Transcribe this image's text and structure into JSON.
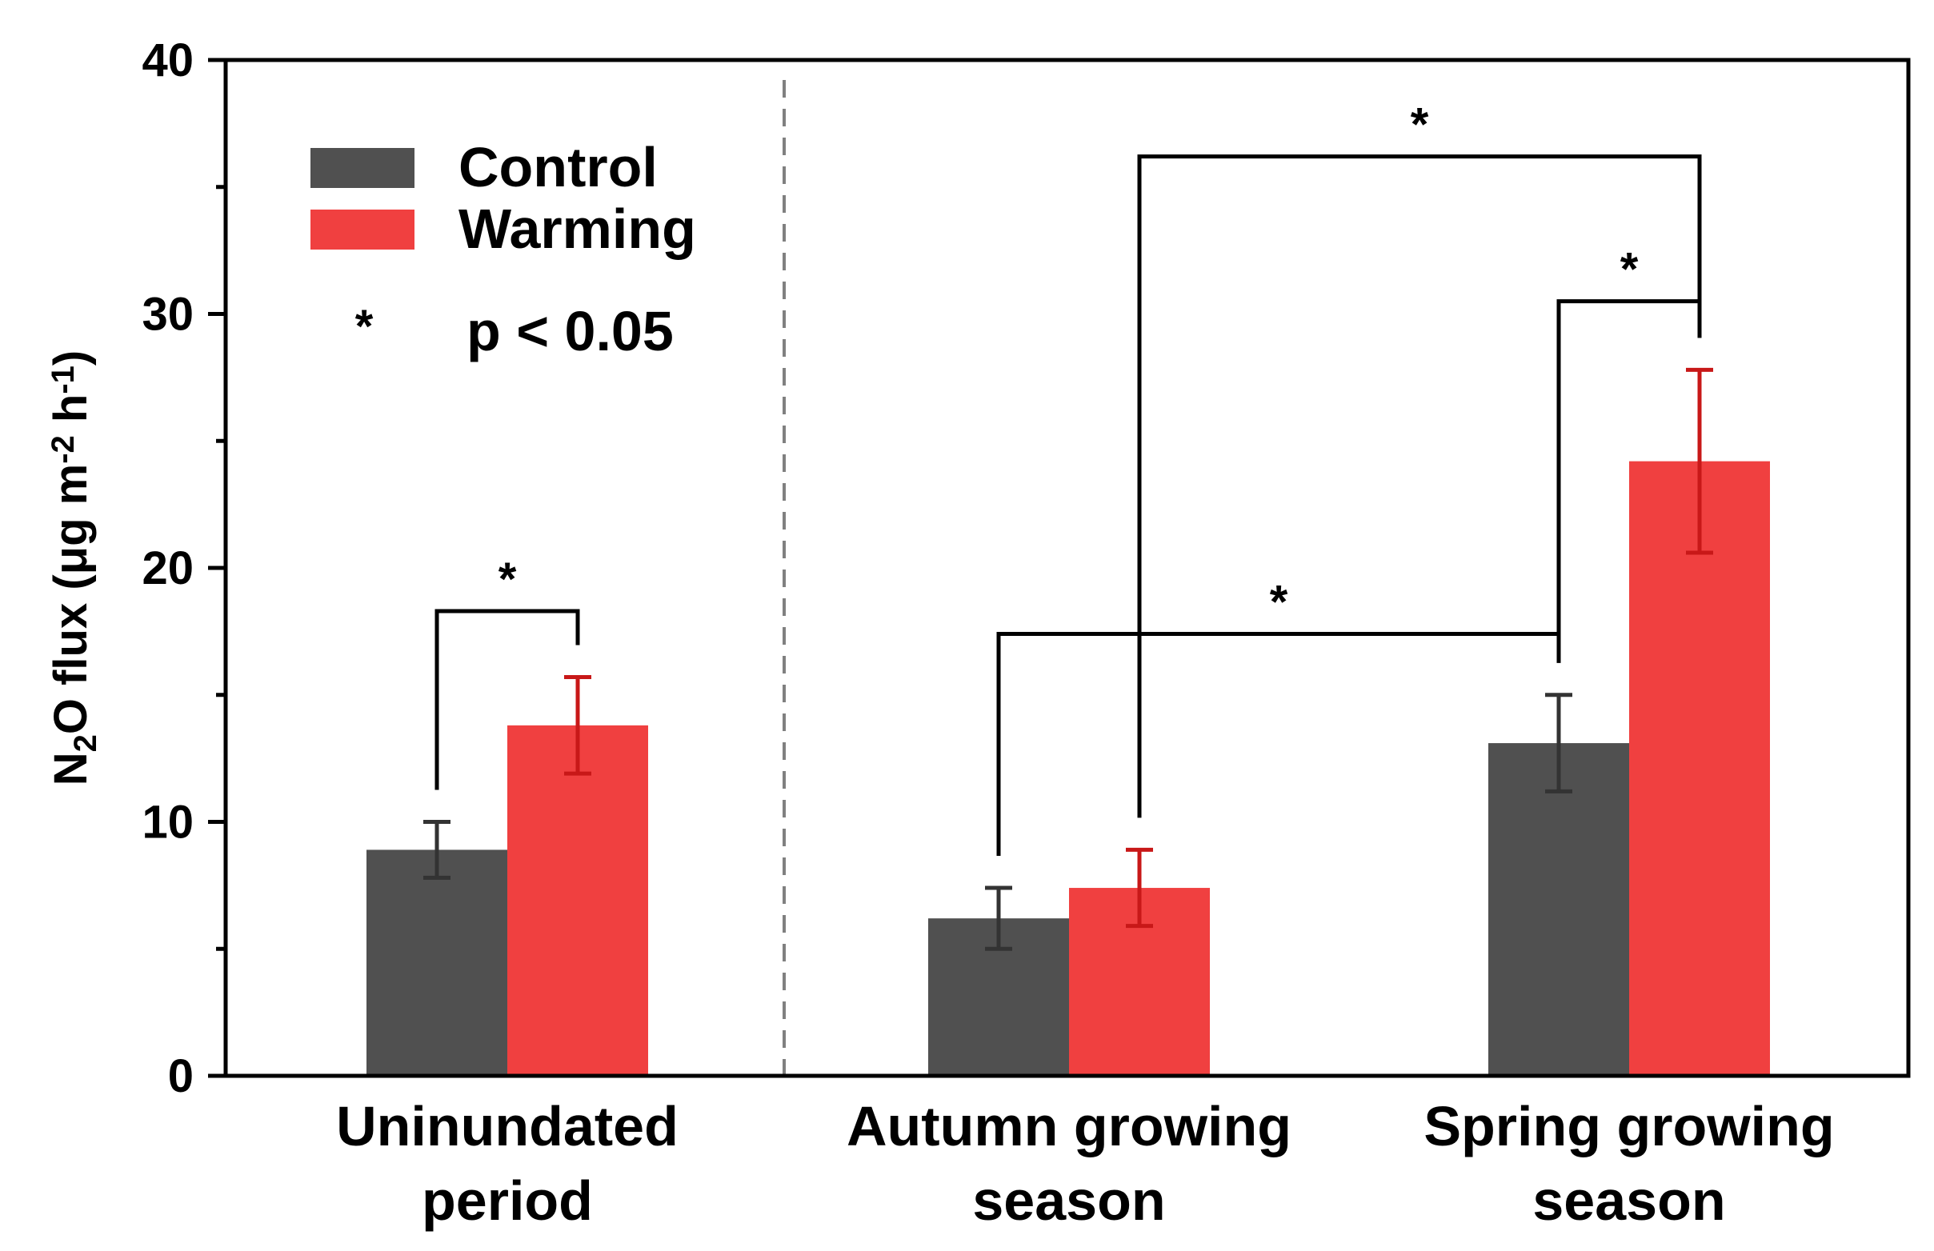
{
  "chart_data": {
    "type": "bar",
    "title": "",
    "xlabel": "",
    "ylabel_parts": [
      "N",
      "2",
      "O flux (μg m",
      "-2",
      " h",
      "-1",
      ")"
    ],
    "ylim": [
      0,
      40
    ],
    "yticks": [
      "0",
      "10",
      "20",
      "30",
      "40"
    ],
    "categories": [
      {
        "line1": "Uninundated",
        "line2": "period"
      },
      {
        "line1": "Autumn growing",
        "line2": "season"
      },
      {
        "line1": "Spring growing",
        "line2": "season"
      }
    ],
    "series": [
      {
        "name": "Control",
        "color": "#505050",
        "error_color": "#333333",
        "values": [
          8.9,
          6.2,
          13.1
        ],
        "errors": [
          1.1,
          1.2,
          1.9
        ]
      },
      {
        "name": "Warming",
        "color": "#F04040",
        "error_color": "#C81818",
        "values": [
          13.8,
          7.4,
          24.2
        ],
        "errors": [
          1.9,
          1.5,
          3.6
        ]
      }
    ],
    "significance_note": {
      "marker": "*",
      "label": "p < 0.05"
    },
    "significance": [
      {
        "from_group": 0,
        "from_series": 0,
        "to_group": 0,
        "to_series": 1,
        "bracket_y": 18.3,
        "marker": "*"
      },
      {
        "from_group": 1,
        "from_series": 0,
        "to_group": 2,
        "to_series": 0,
        "bracket_y": 17.4,
        "marker": "*"
      },
      {
        "from_group": 2,
        "from_series": 0,
        "to_group": 2,
        "to_series": 1,
        "bracket_y": 30.5,
        "marker": "*"
      },
      {
        "from_group": 1,
        "from_series": 1,
        "to_group": 2,
        "to_series": 1,
        "bracket_y": 36.2,
        "marker": "*"
      }
    ],
    "legend_position": "top-left",
    "divider": "dashed line between first and second group"
  }
}
